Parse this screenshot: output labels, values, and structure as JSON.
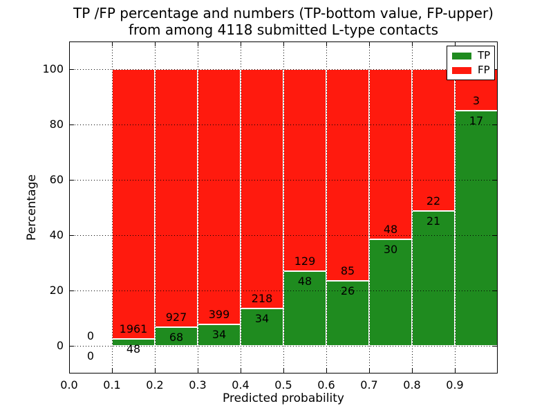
{
  "title": {
    "line1": "TP /FP percentage and numbers (TP-bottom value, FP-upper)",
    "line2": "from among 4118 submitted L-type contacts"
  },
  "axes": {
    "xlabel": "Predicted probability",
    "ylabel": "Percentage",
    "xtick_values": [
      0.0,
      0.1,
      0.2,
      0.3,
      0.4,
      0.5,
      0.6,
      0.7,
      0.8,
      0.9
    ],
    "xtick_labels": [
      "0.0",
      "0.1",
      "0.2",
      "0.3",
      "0.4",
      "0.5",
      "0.6",
      "0.7",
      "0.8",
      "0.9"
    ],
    "ytick_values": [
      0,
      20,
      40,
      60,
      80,
      100
    ],
    "ytick_labels": [
      "0",
      "20",
      "40",
      "60",
      "80",
      "100"
    ],
    "xlim": [
      0.0,
      1.0
    ],
    "ylim": [
      -10,
      110
    ],
    "grid_style": "dotted"
  },
  "legend": {
    "position": "upper-right",
    "entries": [
      {
        "label": "TP",
        "color": "#1f8b1f"
      },
      {
        "label": "FP",
        "color": "#ff1a0e"
      }
    ]
  },
  "colors": {
    "tp": "#1f8b1f",
    "fp": "#ff1a0e",
    "bar_edge": "#ffffff",
    "grid": "#000000",
    "text": "#000000",
    "background": "#ffffff"
  },
  "chart_data": {
    "type": "bar",
    "stacked": true,
    "normalized_to_percent": true,
    "title": "TP /FP percentage and numbers (TP-bottom value, FP-upper) from among 4118 submitted L-type contacts",
    "xlabel": "Predicted probability",
    "ylabel": "Percentage",
    "total_contacts": 4118,
    "bin_width": 0.1,
    "label_note": "TP count below stack boundary, FP count above stack boundary",
    "series_names": [
      "TP",
      "FP"
    ],
    "bins": [
      {
        "x0": 0.0,
        "x1": 0.1,
        "tp": 0,
        "fp": 0
      },
      {
        "x0": 0.1,
        "x1": 0.2,
        "tp": 48,
        "fp": 1961
      },
      {
        "x0": 0.2,
        "x1": 0.3,
        "tp": 68,
        "fp": 927
      },
      {
        "x0": 0.3,
        "x1": 0.4,
        "tp": 34,
        "fp": 399
      },
      {
        "x0": 0.4,
        "x1": 0.5,
        "tp": 34,
        "fp": 218
      },
      {
        "x0": 0.5,
        "x1": 0.6,
        "tp": 48,
        "fp": 129
      },
      {
        "x0": 0.6,
        "x1": 0.7,
        "tp": 26,
        "fp": 85
      },
      {
        "x0": 0.7,
        "x1": 0.8,
        "tp": 30,
        "fp": 48
      },
      {
        "x0": 0.8,
        "x1": 0.9,
        "tp": 21,
        "fp": 22
      },
      {
        "x0": 0.9,
        "x1": 1.0,
        "tp": 17,
        "fp": 3
      }
    ]
  }
}
